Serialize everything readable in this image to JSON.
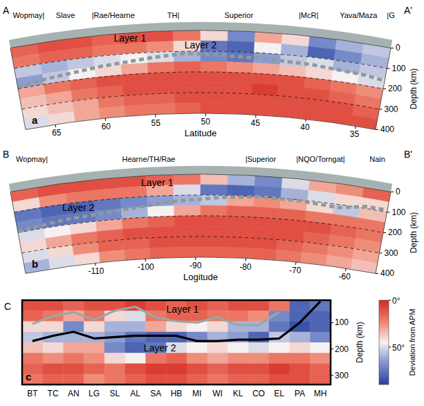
{
  "chart_data": [
    {
      "type": "heatmap",
      "panel": "a",
      "profile_labels": [
        "A",
        "A'"
      ],
      "regions": [
        {
          "label": "Wopmay|",
          "x": 66.3
        },
        {
          "label": "Slave",
          "x": 62.9
        },
        {
          "label": "|Rae/Hearne",
          "x": 58.5
        },
        {
          "label": "TH|",
          "x": 53
        },
        {
          "label": "Superior",
          "x": 47
        },
        {
          "label": "|McR|",
          "x": 40.6
        },
        {
          "label": "Yava/Maza",
          "x": 36
        },
        {
          "label": "|G",
          "x": 33
        }
      ],
      "xlabel": "Latitude",
      "ylabel": "Depth (km)",
      "xlim": [
        68,
        33
      ],
      "ylim": [
        0,
        400
      ],
      "xticks": [
        65,
        60,
        55,
        50,
        45,
        40,
        35
      ],
      "yticks": [
        0,
        100,
        200,
        300,
        400
      ],
      "grid": true,
      "x_edges": [
        68,
        65.5,
        63,
        60.5,
        58,
        55.5,
        53,
        50.5,
        48,
        45.5,
        43,
        40.5,
        38,
        35.5,
        33
      ],
      "y_edges": [
        0,
        50,
        100,
        150,
        200,
        250,
        300,
        350,
        400
      ],
      "cells": [
        [
          15,
          10,
          10,
          15,
          10,
          10,
          20,
          40,
          70,
          30,
          40,
          70,
          60,
          55
        ],
        [
          20,
          15,
          15,
          20,
          20,
          25,
          40,
          75,
          80,
          45,
          60,
          80,
          70,
          60
        ],
        [
          55,
          60,
          55,
          50,
          45,
          50,
          60,
          70,
          75,
          65,
          55,
          50,
          60,
          55
        ],
        [
          65,
          55,
          45,
          40,
          30,
          20,
          15,
          20,
          25,
          30,
          35,
          40,
          45,
          50
        ],
        [
          30,
          20,
          15,
          10,
          10,
          10,
          10,
          10,
          10,
          10,
          10,
          15,
          20,
          25
        ],
        [
          35,
          30,
          20,
          15,
          10,
          10,
          10,
          10,
          10,
          5,
          10,
          10,
          15,
          20
        ],
        [
          40,
          35,
          30,
          20,
          15,
          15,
          10,
          10,
          10,
          10,
          10,
          10,
          10,
          15
        ],
        [
          50,
          40,
          30,
          25,
          20,
          20,
          15,
          10,
          10,
          10,
          10,
          10,
          10,
          10
        ]
      ],
      "lines": [
        {
          "x": [
            68,
            65,
            60,
            55,
            52,
            50,
            45,
            40,
            35,
            33
          ],
          "values": [
            190,
            175,
            150,
            125,
            110,
            115,
            125,
            135,
            150,
            160
          ],
          "color": "#8d9b9b",
          "line_style": "dashed"
        }
      ],
      "annotations": [
        {
          "text": "Layer 1",
          "x": 57,
          "y": 25
        },
        {
          "text": "Layer 2",
          "x": 50.5,
          "y": 70
        }
      ]
    },
    {
      "type": "heatmap",
      "panel": "b",
      "profile_labels": [
        "B",
        "B'"
      ],
      "regions": [
        {
          "label": "Wopmay|",
          "x": -120
        },
        {
          "label": "Hearne/TH/Rae",
          "x": -98.5
        },
        {
          "label": "|Superior",
          "x": -78
        },
        {
          "label": "|NQO/Torngat|",
          "x": -67
        },
        {
          "label": "Nain",
          "x": -56.5
        }
      ],
      "xlabel": "Logitude",
      "ylabel": "Depth (km)",
      "xlim": [
        -124,
        -54
      ],
      "ylim": [
        0,
        400
      ],
      "xticks": [
        -110,
        -100,
        -90,
        -80,
        -70,
        -60
      ],
      "yticks": [
        0,
        100,
        200,
        300,
        400
      ],
      "grid": true,
      "x_edges": [
        -124,
        -119,
        -114,
        -109,
        -104,
        -99,
        -94,
        -89,
        -84,
        -79,
        -74,
        -69,
        -64,
        -59,
        -54
      ],
      "y_edges": [
        0,
        50,
        100,
        150,
        200,
        250,
        300,
        350,
        400
      ],
      "cells": [
        [
          15,
          10,
          10,
          10,
          10,
          15,
          20,
          35,
          60,
          70,
          50,
          30,
          25,
          15
        ],
        [
          40,
          25,
          20,
          20,
          20,
          30,
          50,
          75,
          80,
          75,
          60,
          50,
          40,
          40
        ],
        [
          75,
          80,
          80,
          75,
          70,
          65,
          60,
          55,
          30,
          25,
          30,
          40,
          55,
          35
        ],
        [
          70,
          75,
          75,
          70,
          60,
          45,
          30,
          20,
          15,
          15,
          15,
          20,
          20,
          20
        ],
        [
          50,
          45,
          40,
          30,
          20,
          15,
          10,
          10,
          10,
          10,
          10,
          10,
          15,
          20
        ],
        [
          40,
          30,
          20,
          15,
          10,
          10,
          10,
          10,
          10,
          10,
          10,
          15,
          20,
          25
        ],
        [
          50,
          40,
          25,
          15,
          15,
          10,
          10,
          10,
          10,
          10,
          15,
          20,
          25,
          30
        ],
        [
          60,
          50,
          40,
          25,
          20,
          15,
          15,
          15,
          15,
          15,
          20,
          25,
          30,
          35
        ]
      ],
      "lines": [
        {
          "x": [
            -124,
            -115,
            -105,
            -95,
            -85,
            -78,
            -70,
            -63,
            -58,
            -54
          ],
          "values": [
            195,
            175,
            160,
            130,
            110,
            100,
            105,
            115,
            90,
            90
          ],
          "color": "#8d9b9b",
          "line_style": "dashed"
        }
      ],
      "annotations": [
        {
          "text": "Layer 1",
          "x": -97,
          "y": 35
        },
        {
          "text": "Layer 2",
          "x": -112,
          "y": 125
        }
      ]
    },
    {
      "type": "heatmap",
      "panel": "c",
      "profile_labels": [
        "C"
      ],
      "ylabel": "Depth (km)",
      "categories": [
        "BT",
        "TC",
        "AN",
        "LG",
        "SL",
        "AL",
        "SA",
        "HB",
        "MI",
        "WI",
        "KL",
        "CO",
        "EL",
        "PA",
        "MH"
      ],
      "ylim": [
        15,
        335
      ],
      "yticks": [
        100,
        200,
        300
      ],
      "grid": false,
      "y_edges": [
        15,
        55,
        95,
        135,
        175,
        215,
        255,
        295,
        335
      ],
      "cells": [
        [
          10,
          10,
          15,
          10,
          10,
          5,
          10,
          15,
          10,
          15,
          10,
          10,
          20,
          80,
          75
        ],
        [
          15,
          20,
          30,
          20,
          40,
          50,
          20,
          15,
          15,
          20,
          20,
          25,
          70,
          80,
          80
        ],
        [
          40,
          40,
          70,
          40,
          60,
          60,
          30,
          40,
          45,
          40,
          60,
          60,
          75,
          85,
          80
        ],
        [
          55,
          60,
          60,
          60,
          65,
          75,
          80,
          80,
          70,
          60,
          65,
          80,
          55,
          60,
          70
        ],
        [
          35,
          40,
          30,
          30,
          70,
          80,
          75,
          50,
          45,
          40,
          45,
          50,
          45,
          40,
          45
        ],
        [
          20,
          25,
          20,
          25,
          40,
          45,
          20,
          15,
          25,
          30,
          25,
          25,
          20,
          20,
          25
        ],
        [
          15,
          10,
          10,
          15,
          20,
          10,
          5,
          5,
          10,
          15,
          10,
          10,
          5,
          10,
          15
        ],
        [
          20,
          15,
          15,
          25,
          20,
          15,
          10,
          10,
          15,
          20,
          15,
          15,
          10,
          10,
          15
        ]
      ],
      "lines": [
        {
          "values": [
            105,
            75,
            60,
            90,
            55,
            40,
            80,
            95,
            100,
            80,
            110,
            110,
            60,
            null,
            null
          ],
          "color": "#9aa7a7",
          "line_style": "solid"
        },
        {
          "values": [
            170,
            150,
            135,
            160,
            155,
            150,
            150,
            150,
            170,
            170,
            165,
            165,
            160,
            100,
            20
          ],
          "color": "#000000",
          "line_style": "solid"
        }
      ],
      "annotations": [
        {
          "text": "Layer 1",
          "x": 7.3,
          "y": 48
        },
        {
          "text": "Layer 2",
          "x": 6.2,
          "y": 195
        }
      ],
      "colorbar": {
        "label": "Deviation from APM",
        "range": [
          0,
          90
        ],
        "ticks": [
          {
            "value": 0,
            "label": "0°"
          },
          {
            "value": 50,
            "label": "50°"
          }
        ]
      }
    }
  ]
}
